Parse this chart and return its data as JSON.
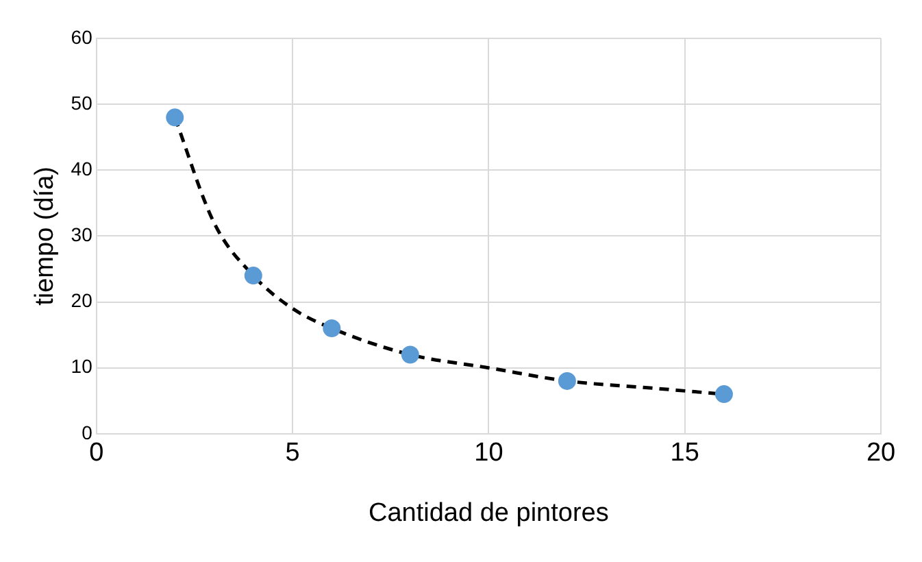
{
  "chart_data": {
    "type": "scatter",
    "xlabel": "Cantidad de pintores",
    "ylabel": "tiempo (día)",
    "series": [
      {
        "color": "#5b9bd5",
        "x": [
          2,
          4,
          6,
          8,
          12,
          16
        ],
        "values": [
          48,
          24,
          16,
          12,
          8,
          6
        ]
      },
      {
        "type": "line",
        "color": "#000000",
        "line_style": "dashed",
        "marker": "none",
        "x": [
          2,
          3,
          4,
          5,
          6,
          8,
          10,
          12,
          14,
          16
        ],
        "values": [
          48,
          32,
          24,
          19,
          16,
          12,
          10,
          8,
          7,
          6
        ]
      }
    ],
    "xlim": [
      0,
      20
    ],
    "xticks": [
      0,
      5,
      10,
      15,
      20
    ],
    "ylim": [
      0,
      60
    ],
    "yticks": [
      0,
      10,
      20,
      30,
      40,
      50,
      60
    ],
    "grid": true,
    "marker": "circle"
  }
}
